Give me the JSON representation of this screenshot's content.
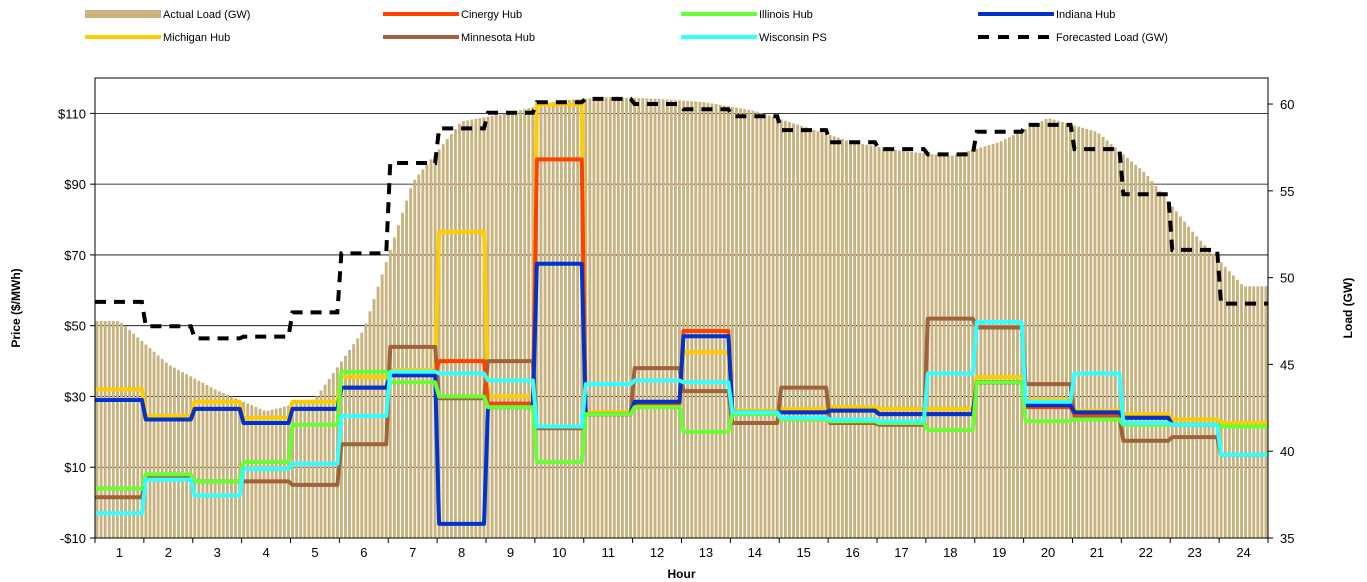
{
  "chart_data": {
    "type": "line",
    "title": "",
    "xlabel": "Hour",
    "ylabel_left": "Price ($/MWh)",
    "ylabel_right": "Load (GW)",
    "categories": [
      "1",
      "2",
      "3",
      "4",
      "5",
      "6",
      "7",
      "8",
      "9",
      "10",
      "11",
      "12",
      "13",
      "14",
      "15",
      "16",
      "17",
      "18",
      "19",
      "20",
      "21",
      "22",
      "23",
      "24"
    ],
    "ylim_left": [
      -10,
      120
    ],
    "yticks_left": [
      -10,
      10,
      30,
      50,
      70,
      90,
      110
    ],
    "ytick_labels_left": [
      "-$10",
      "$10",
      "$30",
      "$50",
      "$70",
      "$90",
      "$110"
    ],
    "ylim_right": [
      35,
      61.5
    ],
    "yticks_right": [
      35,
      40,
      45,
      50,
      55,
      60
    ],
    "ytick_labels_right": [
      "35",
      "40",
      "45",
      "50",
      "55",
      "60"
    ],
    "grid": true,
    "legend_position": "top",
    "actual_load": {
      "name": "Actual Load (GW)",
      "axis": "right",
      "color": "#c8b27e",
      "hourly": [
        47.5,
        45.0,
        43.5,
        42.3,
        43.0,
        47.0,
        55.5,
        59.0,
        59.5,
        60.2,
        60.4,
        60.3,
        60.1,
        59.6,
        58.7,
        57.8,
        57.3,
        57.0,
        57.8,
        59.2,
        58.4,
        56.0,
        52.5,
        49.5
      ]
    },
    "forecast_load": {
      "name": "Forecasted Load (GW)",
      "axis": "right",
      "color": "#000000",
      "hourly": [
        48.6,
        47.2,
        46.5,
        46.6,
        48.0,
        51.4,
        56.6,
        58.6,
        59.5,
        60.1,
        60.3,
        60.0,
        59.7,
        59.3,
        58.5,
        57.8,
        57.4,
        57.1,
        58.4,
        58.8,
        57.4,
        54.8,
        51.6,
        48.5
      ]
    },
    "series": [
      {
        "name": "Cinergy Hub",
        "color": "#ff4000",
        "values": [
          29,
          23.5,
          26.5,
          22.5,
          26.5,
          32.5,
          36,
          40,
          28,
          97,
          25,
          28,
          48.5,
          25.5,
          25.5,
          26,
          25,
          25,
          34,
          27,
          25,
          24,
          22,
          21.5
        ]
      },
      {
        "name": "Illinois Hub",
        "color": "#66ff33",
        "values": [
          4,
          8,
          6,
          11.5,
          22,
          37,
          34,
          30,
          27,
          11.5,
          25,
          27,
          20,
          25,
          23.5,
          23,
          22.5,
          20.5,
          34,
          23,
          23.5,
          22,
          22,
          21.5
        ]
      },
      {
        "name": "Indiana Hub",
        "color": "#0033cc",
        "values": [
          29,
          23.5,
          26.5,
          22.5,
          26.5,
          32.5,
          36,
          -6,
          27,
          67.5,
          25,
          28.5,
          47,
          25.5,
          25.5,
          26,
          25,
          25,
          34,
          27.5,
          25.5,
          24,
          22,
          21.5
        ]
      },
      {
        "name": "Michigan Hub",
        "color": "#ffcc00",
        "values": [
          32,
          24.5,
          28.5,
          24,
          28.5,
          35.5,
          37.5,
          76.5,
          30,
          112.5,
          25.5,
          27,
          42.5,
          26,
          26.5,
          27,
          26.5,
          26.5,
          35.5,
          29,
          26,
          25,
          23.5,
          22.5
        ]
      },
      {
        "name": "Minnesota Hub",
        "color": "#a0623a",
        "values": [
          1.5,
          7.5,
          6,
          6,
          5,
          16.5,
          44,
          29.5,
          40,
          21,
          25,
          38,
          31.5,
          22.5,
          32.5,
          22.5,
          22,
          52,
          49.5,
          33.5,
          24,
          17.5,
          18.5,
          13.5
        ]
      },
      {
        "name": "Wisconsin PS",
        "color": "#33ffff",
        "values": [
          -3,
          6.5,
          2,
          9.5,
          11,
          24.5,
          37,
          36.5,
          34.5,
          21.5,
          33.5,
          34.5,
          34,
          25.5,
          24,
          23.5,
          23,
          36.5,
          51,
          28.5,
          36.5,
          22.5,
          22,
          13.5
        ]
      }
    ],
    "legend": [
      {
        "name": "Actual Load (GW)",
        "style": "bar",
        "color": "#c8b27e"
      },
      {
        "name": "Cinergy Hub",
        "style": "line",
        "color": "#ff4000"
      },
      {
        "name": "Illinois Hub",
        "style": "line",
        "color": "#66ff33"
      },
      {
        "name": "Indiana Hub",
        "style": "line",
        "color": "#0033cc"
      },
      {
        "name": "Michigan Hub",
        "style": "line",
        "color": "#ffcc00"
      },
      {
        "name": "Minnesota Hub",
        "style": "line",
        "color": "#a0623a"
      },
      {
        "name": "Wisconsin PS",
        "style": "line",
        "color": "#33ffff"
      },
      {
        "name": "Forecasted Load (GW)",
        "style": "dashed",
        "color": "#000000"
      }
    ]
  }
}
